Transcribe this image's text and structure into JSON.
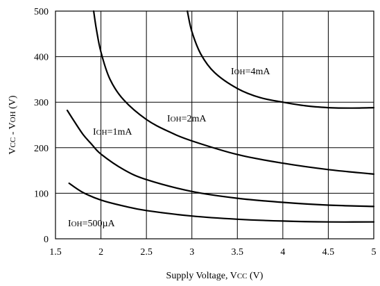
{
  "chart_data": {
    "type": "line",
    "xlabel": "Supply Voltage, Vcc (V)",
    "xlabel_parts": {
      "main": "Supply Voltage, V",
      "sub": "CC",
      "unit": " (V)"
    },
    "ylabel": "Vcc - VoH  (V)",
    "ylabel_parts": {
      "v1": "V",
      "s1": "CC",
      "mid": " - V",
      "s2": "OH",
      "unit": "  (V)"
    },
    "xlim": [
      1.5,
      5
    ],
    "ylim": [
      0,
      500
    ],
    "x_ticks": [
      1.5,
      2,
      2.5,
      3,
      3.5,
      4,
      4.5,
      5
    ],
    "x_tick_labels": [
      "1.5",
      "2",
      "2.5",
      "3",
      "3.5",
      "4",
      "4.5",
      "5"
    ],
    "y_ticks": [
      0,
      100,
      200,
      300,
      400,
      500
    ],
    "y_tick_labels": [
      "0",
      "100",
      "200",
      "300",
      "400",
      "500"
    ],
    "grid": true,
    "series": [
      {
        "name": "IOH=500µA",
        "label_parts": {
          "i": "I",
          "sub": "OH",
          "rest": "=500µA"
        },
        "x": [
          1.65,
          1.8,
          2.0,
          2.25,
          2.5,
          3.0,
          3.5,
          4.0,
          4.5,
          5.0
        ],
        "y": [
          122,
          102,
          85,
          72,
          62,
          50,
          43,
          39,
          37,
          37
        ]
      },
      {
        "name": "IOH=1mA",
        "label_parts": {
          "i": "I",
          "sub": "OH",
          "rest": "=1mA"
        },
        "x": [
          1.63,
          1.7,
          1.8,
          1.9,
          2.0,
          2.25,
          2.5,
          3.0,
          3.5,
          4.0,
          4.5,
          5.0
        ],
        "y": [
          282,
          260,
          230,
          207,
          186,
          152,
          130,
          104,
          89,
          80,
          74,
          71
        ]
      },
      {
        "name": "IOH=2mA",
        "label_parts": {
          "i": "I",
          "sub": "OH",
          "rest": "=2mA"
        },
        "x": [
          1.92,
          1.95,
          2.0,
          2.1,
          2.25,
          2.5,
          2.75,
          3.0,
          3.5,
          4.0,
          4.5,
          5.0
        ],
        "y": [
          500,
          460,
          410,
          350,
          305,
          262,
          235,
          215,
          185,
          166,
          152,
          142
        ]
      },
      {
        "name": "IOH=4mA",
        "label_parts": {
          "i": "I",
          "sub": "OH",
          "rest": "=4mA"
        },
        "x": [
          2.95,
          3.0,
          3.1,
          3.25,
          3.5,
          3.75,
          4.0,
          4.25,
          4.5,
          4.75,
          5.0
        ],
        "y": [
          500,
          455,
          405,
          365,
          330,
          310,
          300,
          292,
          288,
          287,
          288
        ]
      }
    ]
  }
}
